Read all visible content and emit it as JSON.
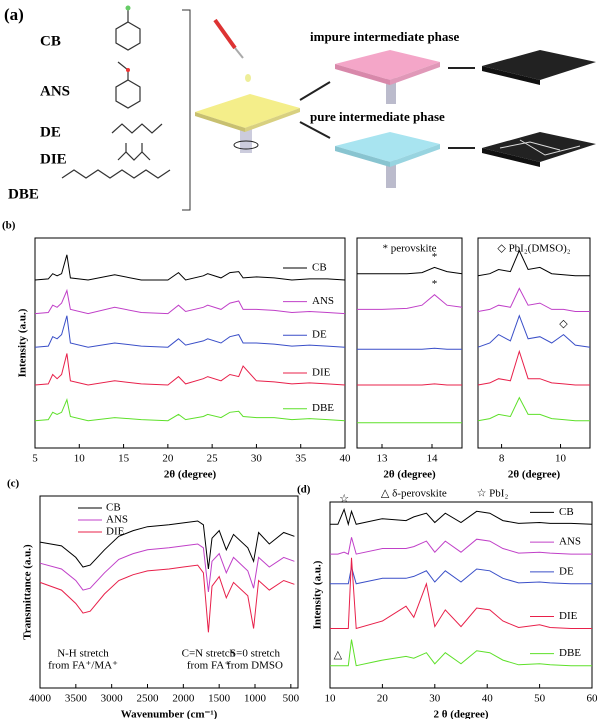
{
  "figure_a": {
    "panel": "(a)",
    "solvents": [
      "CB",
      "ANS",
      "DE",
      "DIE",
      "DBE"
    ],
    "phases": [
      "impure intermediate phase",
      "pure intermediate phase"
    ]
  },
  "chart_data": [
    {
      "type": "line",
      "panel": "(b)",
      "ylabel": "Intensity (a.u.)",
      "xlabel": "2θ (degree)",
      "legend": "inline",
      "xlim": [
        5,
        40
      ],
      "xticks": [
        5,
        10,
        15,
        20,
        25,
        30,
        35,
        40
      ],
      "ylim": [
        0,
        10
      ],
      "x": [
        5,
        6.5,
        7,
        7.5,
        8,
        8.6,
        9,
        11,
        14,
        17,
        20,
        21.2,
        22,
        24,
        24.5,
        26,
        27,
        28,
        28.5,
        30,
        32,
        34,
        36,
        38,
        40
      ],
      "series": [
        {
          "name": "CB",
          "color": "#000000",
          "values": [
            8,
            8.05,
            8.3,
            8.2,
            8.3,
            9.2,
            8.1,
            8,
            8.25,
            8,
            8,
            8.35,
            8,
            8.2,
            8.3,
            8.1,
            8.35,
            8.4,
            8.1,
            8.15,
            8.1,
            8,
            8.05,
            8.05,
            8
          ]
        },
        {
          "name": "ANS",
          "color": "#c040c8",
          "values": [
            6.4,
            6.45,
            6.8,
            6.7,
            6.9,
            7.5,
            6.6,
            6.4,
            6.7,
            6.45,
            6.4,
            6.8,
            6.5,
            6.7,
            6.8,
            6.6,
            6.9,
            7,
            6.6,
            6.6,
            6.55,
            6.45,
            6.5,
            6.45,
            6.4
          ]
        },
        {
          "name": "DE",
          "color": "#3a4fc8",
          "values": [
            4.8,
            4.85,
            5.3,
            5.2,
            5.4,
            6.3,
            5,
            4.8,
            5,
            4.85,
            4.8,
            5.2,
            4.9,
            5.1,
            5.2,
            5,
            5.3,
            5.4,
            5,
            5,
            4.95,
            4.85,
            4.9,
            4.85,
            4.8
          ]
        },
        {
          "name": "DIE",
          "color": "#e8204a",
          "values": [
            3,
            3.05,
            3.5,
            3.3,
            3.5,
            4.5,
            3.2,
            3,
            3.2,
            3.05,
            3,
            3.4,
            3.05,
            3.3,
            3.4,
            3.2,
            3.5,
            3.4,
            3.9,
            3.2,
            3.15,
            3.05,
            3.1,
            3.05,
            3
          ]
        },
        {
          "name": "DBE",
          "color": "#5ee02a",
          "values": [
            1.3,
            1.35,
            1.7,
            1.6,
            1.7,
            2.3,
            1.5,
            1.3,
            1.45,
            1.35,
            1.3,
            1.6,
            1.35,
            1.5,
            1.6,
            1.45,
            1.7,
            1.75,
            1.5,
            1.45,
            1.45,
            1.35,
            1.4,
            1.35,
            1.3
          ]
        }
      ]
    },
    {
      "type": "line",
      "title": "* perovskite",
      "xlabel": "2θ (degree)",
      "xlim": [
        12.5,
        14.6
      ],
      "xticks": [
        13,
        14
      ],
      "ylim": [
        0,
        10
      ],
      "x": [
        12.5,
        13,
        13.5,
        13.8,
        14.05,
        14.3,
        14.6
      ],
      "series": [
        {
          "color": "#000000",
          "values": [
            8.3,
            8.3,
            8.3,
            8.35,
            8.6,
            8.4,
            8.3
          ]
        },
        {
          "color": "#c040c8",
          "values": [
            6.6,
            6.6,
            6.65,
            6.8,
            7.3,
            6.8,
            6.7
          ]
        },
        {
          "color": "#3a4fc8",
          "values": [
            4.7,
            4.7,
            4.7,
            4.7,
            4.75,
            4.7,
            4.7
          ]
        },
        {
          "color": "#e8204a",
          "values": [
            3,
            3,
            3,
            3,
            3.05,
            3,
            3
          ]
        },
        {
          "color": "#5ee02a",
          "values": [
            1.2,
            1.2,
            1.2,
            1.2,
            1.2,
            1.2,
            1.2
          ]
        }
      ],
      "markers": [
        {
          "symbol": "*",
          "series": 0,
          "x": 14.05
        },
        {
          "symbol": "*",
          "series": 1,
          "x": 14.05
        }
      ]
    },
    {
      "type": "line",
      "title": "◇ PbI₂(DMSO)₂",
      "xlabel": "2θ (degree)",
      "xlim": [
        7.2,
        11
      ],
      "xticks": [
        8,
        10
      ],
      "ylim": [
        0,
        10
      ],
      "x": [
        7.2,
        7.6,
        7.9,
        8.3,
        8.6,
        8.9,
        9.3,
        9.7,
        10.1,
        10.5,
        11
      ],
      "series": [
        {
          "color": "#000000",
          "values": [
            8.2,
            8.3,
            8.5,
            8.4,
            9.4,
            8.5,
            8.6,
            8.3,
            8.25,
            8.2,
            8.2
          ]
        },
        {
          "color": "#c040c8",
          "values": [
            6.5,
            6.6,
            6.8,
            6.7,
            7.6,
            6.8,
            6.9,
            6.6,
            6.6,
            6.5,
            6.5
          ]
        },
        {
          "color": "#3a4fc8",
          "values": [
            4.8,
            5,
            5.4,
            5.1,
            6.3,
            5.2,
            5.3,
            5,
            5.4,
            4.9,
            4.8
          ]
        },
        {
          "color": "#e8204a",
          "values": [
            3,
            3.1,
            3.3,
            3.2,
            4.6,
            3.3,
            3.3,
            3.1,
            3.05,
            3,
            3
          ]
        },
        {
          "color": "#5ee02a",
          "values": [
            1.3,
            1.4,
            1.6,
            1.5,
            2.4,
            1.6,
            1.6,
            1.4,
            1.35,
            1.3,
            1.3
          ]
        }
      ],
      "markers": [
        {
          "symbol": "◇",
          "series": 2,
          "x": 10.1
        }
      ]
    },
    {
      "type": "line",
      "panel": "(c)",
      "ylabel": "Transmittance (a.u.)",
      "xlabel": "Wavenumber (cm⁻¹)",
      "legend": "upper left",
      "xlim": [
        4000,
        400
      ],
      "xticks": [
        4000,
        3500,
        3000,
        2500,
        2000,
        1500,
        1000,
        500
      ],
      "ylim": [
        0,
        10
      ],
      "x": [
        4000,
        3700,
        3500,
        3400,
        3300,
        3100,
        2900,
        2700,
        2500,
        2200,
        2000,
        1800,
        1720,
        1650,
        1600,
        1500,
        1400,
        1300,
        1100,
        1020,
        950,
        800,
        600,
        450
      ],
      "series": [
        {
          "name": "CB",
          "color": "#000000",
          "values": [
            7.6,
            7.4,
            6.8,
            6.3,
            6.4,
            7.2,
            7.9,
            8.2,
            8.4,
            8.5,
            8.6,
            8.7,
            8.5,
            6.2,
            7.8,
            8.2,
            7.2,
            8,
            7.3,
            6.6,
            8.1,
            7.5,
            8.1,
            7.9
          ]
        },
        {
          "name": "ANS",
          "color": "#c040c8",
          "values": [
            6.5,
            6.2,
            5.6,
            5.1,
            5.2,
            6,
            6.7,
            7,
            7.2,
            7.3,
            7.4,
            7.5,
            7.3,
            5,
            6.6,
            7,
            6,
            6.8,
            6.1,
            5.2,
            6.8,
            6.3,
            6.8,
            6.6
          ]
        },
        {
          "name": "DIE",
          "color": "#e8204a",
          "values": [
            5.5,
            5.1,
            4.4,
            3.9,
            4,
            4.9,
            5.6,
            5.9,
            6.1,
            6.2,
            6.3,
            6.4,
            6,
            2.9,
            5.3,
            5.8,
            4.7,
            5.5,
            4.8,
            3.1,
            5.6,
            5.1,
            5.6,
            5.4
          ]
        }
      ],
      "annotations": [
        {
          "lines": [
            "N-H stretch",
            "from FA⁺/MA⁺"
          ],
          "x": 3400
        },
        {
          "lines": [
            "C=N stretch",
            "from FA⁺"
          ],
          "x": 1650
        },
        {
          "lines": [
            "S=0 stretch",
            "from DMSO"
          ],
          "x": 1000
        }
      ]
    },
    {
      "type": "line",
      "panel": "(d)",
      "ylabel": "Intensity (a.u.)",
      "xlabel": "2 θ (degree)",
      "legend": "inline",
      "xlim": [
        10,
        60
      ],
      "xticks": [
        10,
        20,
        30,
        40,
        50,
        60
      ],
      "ylim": [
        0,
        10
      ],
      "x": [
        10,
        11.5,
        12.7,
        13.5,
        14.1,
        15,
        20,
        24.5,
        26,
        28.4,
        30,
        32,
        35,
        38,
        40.5,
        43,
        46,
        50,
        52,
        56,
        60
      ],
      "series": [
        {
          "name": "CB",
          "color": "#000000",
          "values": [
            8.8,
            8.8,
            9.6,
            8.8,
            9.5,
            8.8,
            9.1,
            9,
            9.2,
            9.4,
            8.9,
            9.4,
            8.9,
            9.5,
            9.4,
            9,
            8.85,
            8.9,
            8.85,
            8.85,
            8.8
          ]
        },
        {
          "name": "ANS",
          "color": "#c040c8",
          "values": [
            7.2,
            7.2,
            7.3,
            7.2,
            8.1,
            7.2,
            7.5,
            7.5,
            7.6,
            7.9,
            7.3,
            7.9,
            7.3,
            8,
            7.9,
            7.5,
            7.25,
            7.3,
            7.25,
            7.2,
            7.2
          ]
        },
        {
          "name": "DE",
          "color": "#3a4fc8",
          "values": [
            5.6,
            5.6,
            5.6,
            5.6,
            6.5,
            5.6,
            5.9,
            5.9,
            6,
            6.3,
            5.7,
            6.3,
            5.7,
            6.4,
            6.3,
            5.9,
            5.65,
            5.7,
            5.65,
            5.6,
            5.6
          ]
        },
        {
          "name": "DIE",
          "color": "#e8204a",
          "values": [
            3.2,
            3.2,
            3.2,
            3.2,
            7,
            3.2,
            3.6,
            4.4,
            3.8,
            5.6,
            3.3,
            4.2,
            3.3,
            4.3,
            4.2,
            3.6,
            3.25,
            3.4,
            3.25,
            3.2,
            3.2
          ]
        },
        {
          "name": "DBE",
          "color": "#5ee02a",
          "values": [
            1.2,
            1.2,
            1.2,
            1.2,
            2.6,
            1.2,
            1.5,
            1.7,
            1.6,
            1.9,
            1.3,
            1.9,
            1.3,
            2,
            1.9,
            1.5,
            1.25,
            1.3,
            1.25,
            1.2,
            1.2
          ]
        }
      ],
      "annotations": [
        "△ δ-perovskite",
        "☆ PbI₂"
      ],
      "markers": [
        {
          "symbol": "☆",
          "series": 0,
          "x": 12.7
        },
        {
          "symbol": "△",
          "series": 4,
          "x": 11.5
        }
      ]
    }
  ]
}
